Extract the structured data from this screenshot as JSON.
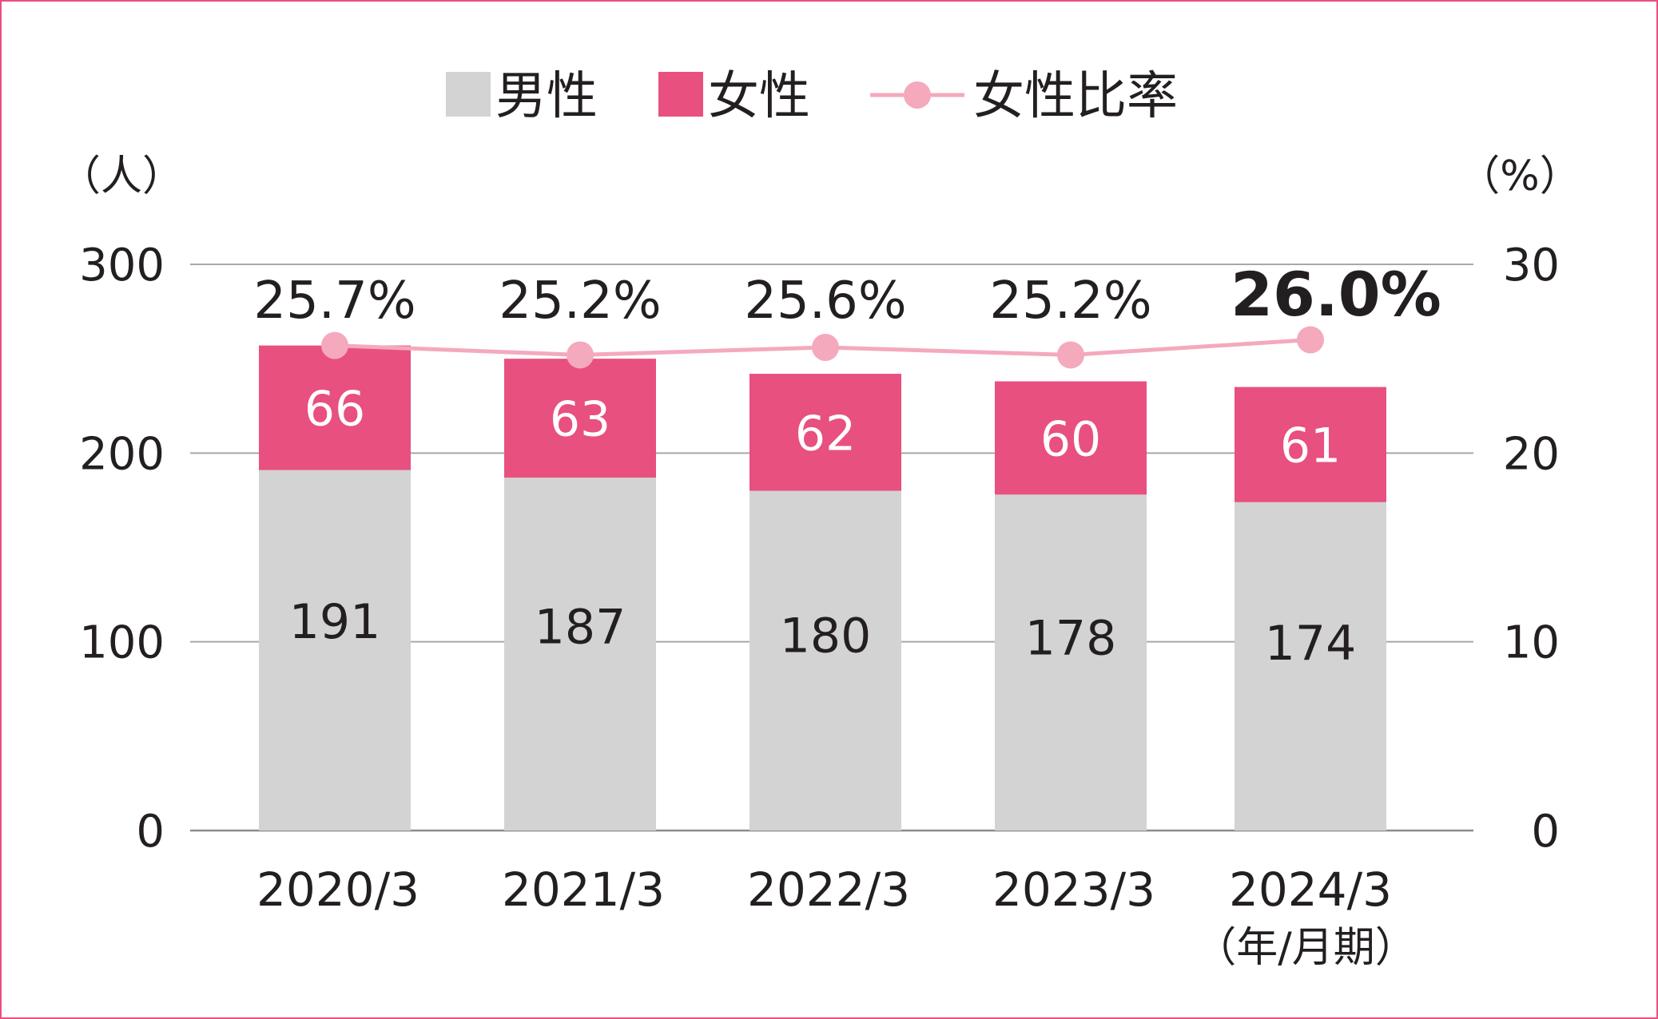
{
  "chart_data": {
    "type": "bar",
    "stacked": true,
    "categories": [
      "2020/3",
      "2021/3",
      "2022/3",
      "2023/3",
      "2024/3"
    ],
    "series": [
      {
        "name": "男性",
        "type": "bar",
        "color": "#d3d3d3",
        "values": [
          191,
          187,
          180,
          178,
          174
        ]
      },
      {
        "name": "女性",
        "type": "bar",
        "color": "#e8507f",
        "values": [
          66,
          63,
          62,
          60,
          61
        ]
      },
      {
        "name": "女性比率",
        "type": "line",
        "axis": "right",
        "color": "#f4a9bd",
        "values": [
          25.7,
          25.2,
          25.6,
          25.2,
          26.0
        ]
      }
    ],
    "ratio_labels": [
      "25.7%",
      "25.2%",
      "25.6%",
      "25.2%",
      "26.0%"
    ],
    "y_left": {
      "unit": "（人）",
      "ylim": [
        0,
        300
      ],
      "ticks": [
        0,
        100,
        200,
        300
      ]
    },
    "y_right": {
      "unit": "（%）",
      "ylim": [
        0,
        30
      ],
      "ticks": [
        0,
        10,
        20,
        30
      ]
    },
    "x_unit": "（年/月期）",
    "grid": true,
    "legend": "top-center",
    "highlight_last_ratio": true
  }
}
